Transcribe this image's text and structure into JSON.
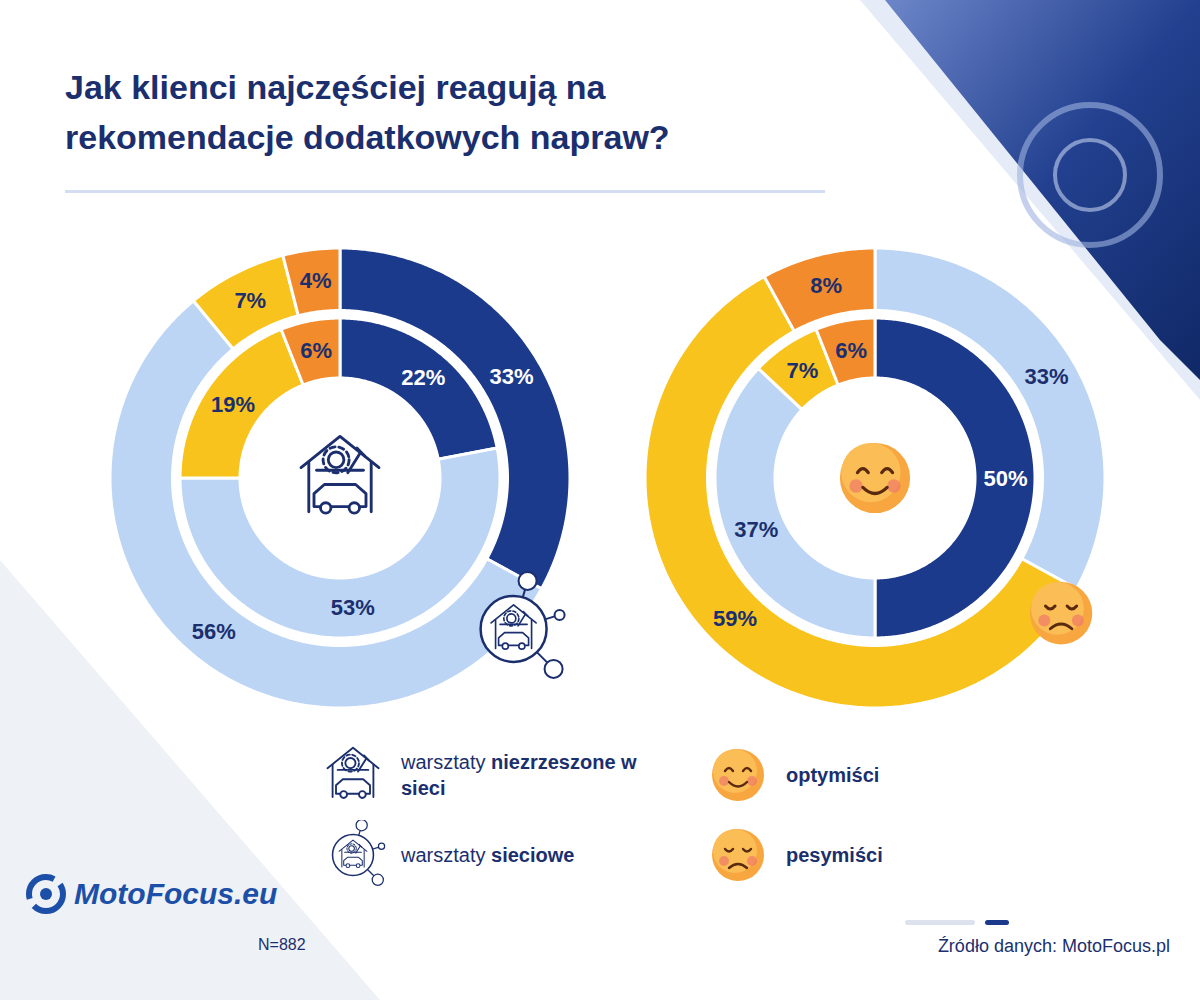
{
  "title": "Jak klienci najczęściej reagują na rekomendacje dodatkowych napraw?",
  "sample": "N=882",
  "source": "Źródło danych: MotoFocus.pl",
  "logo": "MotoFocus.eu",
  "chart_data": [
    {
      "type": "donut",
      "categories": [
        null,
        null,
        null,
        null
      ],
      "colors": [
        "#1b3a8c",
        "#bcd5f5",
        "#f8c31c",
        "#f28b2c"
      ],
      "series": [
        {
          "name": "warsztaty niezrzeszone w sieci",
          "values": [
            22,
            53,
            19,
            6
          ],
          "value_labels": [
            "22%",
            "53%",
            "19%",
            "6%"
          ]
        },
        {
          "name": "warsztaty sieciowe",
          "values": [
            33,
            56,
            7,
            4
          ],
          "value_labels": [
            "33%",
            "56%",
            "7%",
            "4%"
          ]
        }
      ],
      "data_labels": true,
      "tick_labels": false,
      "legend": "bottom"
    },
    {
      "type": "donut",
      "categories": [
        null,
        null,
        null,
        null
      ],
      "colors": [
        "#1b3a8c",
        "#bcd5f5",
        "#f8c31c",
        "#f28b2c"
      ],
      "series": [
        {
          "name": "optymiści",
          "values": [
            50,
            37,
            7,
            6
          ],
          "value_labels": [
            "50%",
            "37%",
            "7%",
            "6%"
          ]
        },
        {
          "name": "pesymiści",
          "values": [
            null,
            33,
            59,
            8
          ],
          "value_labels": [
            null,
            "33%",
            "59%",
            "8%"
          ]
        }
      ],
      "data_labels": true,
      "tick_labels": false,
      "legend": "bottom"
    }
  ]
}
